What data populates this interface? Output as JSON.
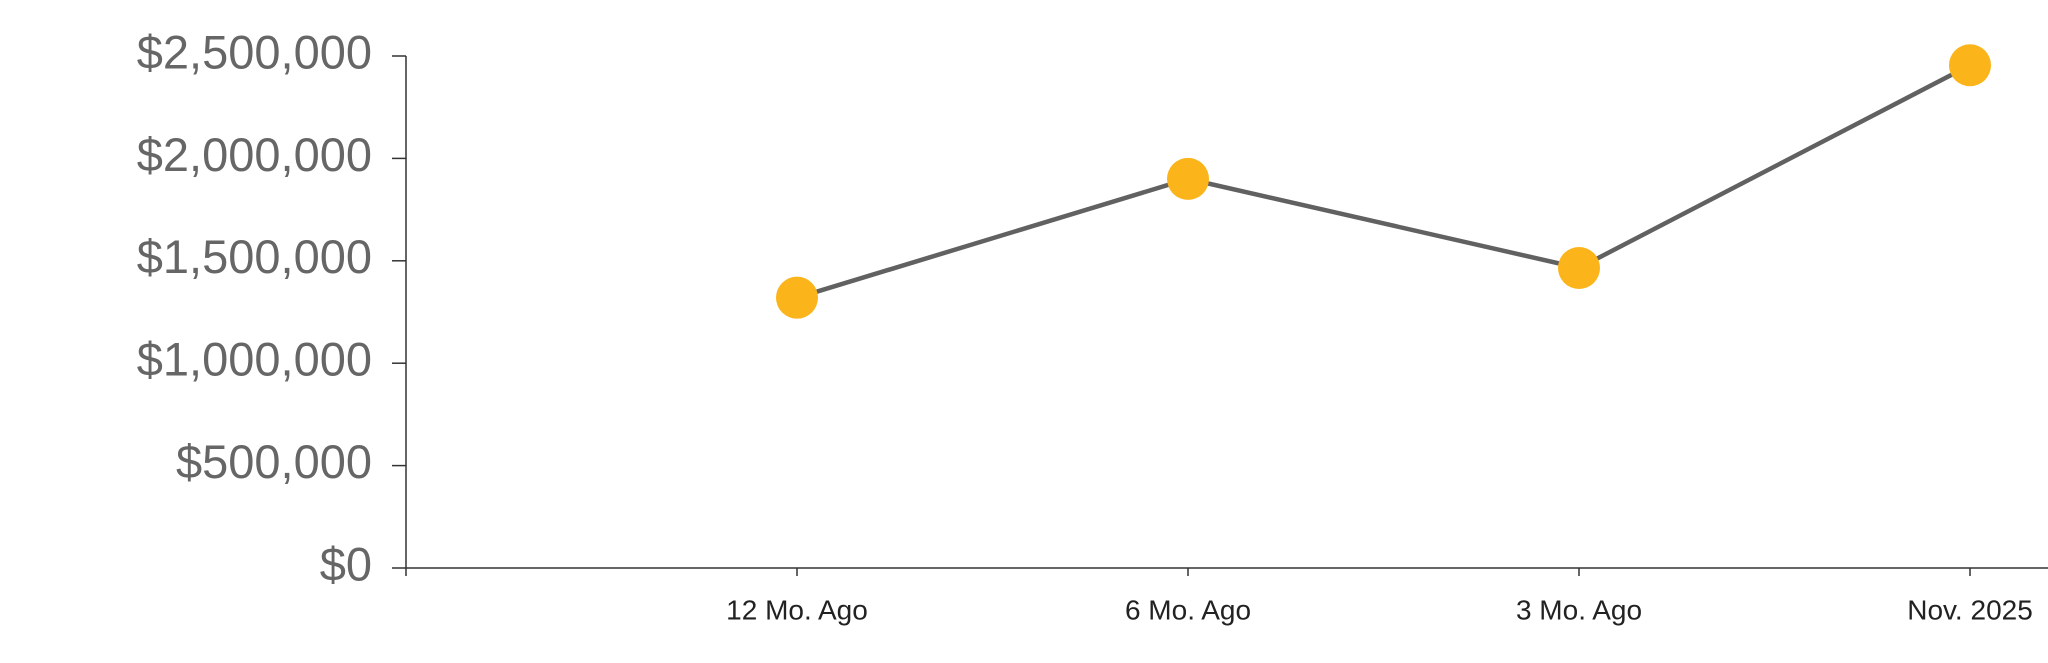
{
  "chart_data": {
    "type": "line",
    "categories": [
      null,
      "12 Mo. Ago",
      "6 Mo. Ago",
      "3 Mo. Ago",
      "Nov. 2025"
    ],
    "series": [
      {
        "color": "#616161",
        "marker_color": "#fbb41a",
        "values": [
          null,
          1320000,
          1900000,
          1465000,
          2455000
        ]
      }
    ],
    "ylim": [
      0,
      2500000
    ],
    "yticks": [
      {
        "value": 0,
        "label": "$0"
      },
      {
        "value": 500000,
        "label": "$500,000"
      },
      {
        "value": 1000000,
        "label": "$1,000,000"
      },
      {
        "value": 1500000,
        "label": "$1,500,000"
      },
      {
        "value": 2000000,
        "label": "$2,000,000"
      },
      {
        "value": 2500000,
        "label": "$2,500,000"
      }
    ],
    "grid": false
  }
}
